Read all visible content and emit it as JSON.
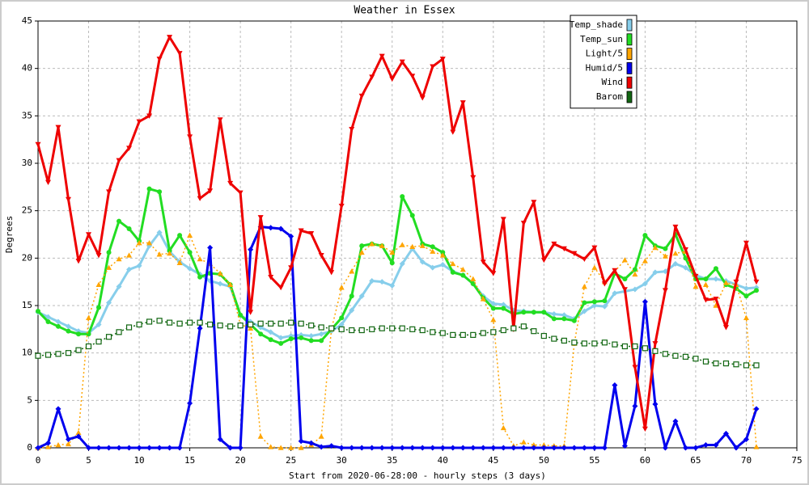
{
  "chart_data": {
    "type": "line",
    "title": "Weather in Essex",
    "x_label": "Start from 2020-06-28:00 - hourly steps (3 days)",
    "y_label": "Degrees",
    "xlim": [
      0,
      75
    ],
    "ylim": [
      0,
      45
    ],
    "xticks": [
      0,
      5,
      10,
      15,
      20,
      25,
      30,
      35,
      40,
      45,
      50,
      55,
      60,
      65,
      70,
      75
    ],
    "yticks": [
      0,
      5,
      10,
      15,
      20,
      25,
      30,
      35,
      40,
      45
    ],
    "grid": true,
    "legend": "top-right",
    "x": [
      0,
      1,
      2,
      3,
      4,
      5,
      6,
      7,
      8,
      9,
      10,
      11,
      12,
      13,
      14,
      15,
      16,
      17,
      18,
      19,
      20,
      21,
      22,
      23,
      24,
      25,
      26,
      27,
      28,
      29,
      30,
      31,
      32,
      33,
      34,
      35,
      36,
      37,
      38,
      39,
      40,
      41,
      42,
      43,
      44,
      45,
      46,
      47,
      48,
      49,
      50,
      51,
      52,
      53,
      54,
      55,
      56,
      57,
      58,
      59,
      60,
      61,
      62,
      63,
      64,
      65,
      66,
      67,
      68,
      69,
      70,
      71
    ],
    "series": [
      {
        "name": "Temp_shade",
        "color": "#87ceeb",
        "marker": "diamond",
        "line_style": "solid",
        "values": [
          14.3,
          13.8,
          13.3,
          12.8,
          12.3,
          12.1,
          13,
          15.3,
          17,
          18.8,
          19.2,
          21.3,
          22.7,
          20.7,
          19.6,
          18.9,
          18.3,
          17.6,
          17.3,
          17,
          14,
          13.3,
          12.7,
          12.2,
          11.6,
          11.8,
          11.9,
          11.8,
          12,
          12.3,
          13,
          14.5,
          16,
          17.6,
          17.5,
          17.1,
          19.4,
          21,
          19.6,
          19,
          19.3,
          18.6,
          18.2,
          17.3,
          16,
          15.2,
          15.1,
          14.5,
          14.4,
          14.3,
          14.3,
          14.1,
          14,
          13.6,
          14.4,
          15,
          14.9,
          16.3,
          16.5,
          16.7,
          17.3,
          18.5,
          18.6,
          19.4,
          19,
          18.2,
          17.8,
          17.8,
          17.6,
          17.2,
          16.8,
          16.9
        ]
      },
      {
        "name": "Temp_sun",
        "color": "#22dd22",
        "marker": "circle",
        "line_style": "solid",
        "values": [
          14.4,
          13.3,
          12.8,
          12.3,
          12,
          12,
          14.8,
          20.6,
          23.9,
          23.1,
          21.8,
          27.3,
          27,
          20.8,
          22.4,
          20.6,
          18,
          18.4,
          18.3,
          17.2,
          14,
          13,
          12,
          11.4,
          11,
          11.5,
          11.6,
          11.3,
          11.3,
          12.5,
          13.7,
          16,
          21.3,
          21.5,
          21.3,
          19.5,
          26.5,
          24.5,
          21.5,
          21.2,
          20.6,
          18.5,
          18.2,
          17.3,
          15.8,
          14.7,
          14.7,
          14.1,
          14.3,
          14.3,
          14.3,
          13.6,
          13.6,
          13.4,
          15.3,
          15.4,
          15.5,
          18.4,
          17.8,
          18.8,
          22.4,
          21.3,
          21,
          22.5,
          20,
          17.8,
          17.8,
          18.9,
          17.2,
          16.8,
          16,
          16.6
        ]
      },
      {
        "name": "Light/5",
        "color": "#ffa500",
        "marker": "triangle-up",
        "line_style": "dotted",
        "values": [
          0,
          0.1,
          0.3,
          0.4,
          1.6,
          13.7,
          17.2,
          19,
          19.9,
          20.3,
          21.6,
          21.6,
          20.4,
          20.5,
          19.5,
          22.4,
          19.9,
          19.4,
          18.4,
          17.2,
          13,
          12.6,
          1.2,
          0.1,
          0,
          0,
          0,
          0.3,
          1.2,
          12.5,
          16.9,
          18.6,
          20.6,
          21.5,
          21.3,
          20.6,
          21.4,
          21.2,
          21.3,
          20.7,
          20.3,
          19.4,
          18.8,
          17.8,
          15.7,
          13.5,
          2.1,
          0.2,
          0.6,
          0.3,
          0.3,
          0.2,
          0.2,
          11,
          17,
          19,
          17.5,
          18.6,
          19.8,
          18.3,
          19.7,
          21.1,
          20.2,
          20.5,
          20.7,
          17,
          17.2,
          15,
          17.4,
          17.2,
          13.7,
          0.1
        ]
      },
      {
        "name": "Humid/5",
        "color": "#0000ee",
        "marker": "diamond",
        "line_style": "solid",
        "values": [
          0,
          0.5,
          4.1,
          0.9,
          1.2,
          0,
          0,
          0,
          0,
          0,
          0,
          0,
          0,
          0,
          0,
          4.7,
          12.6,
          21.1,
          0.9,
          0,
          0,
          20.9,
          23.3,
          23.2,
          23.1,
          22.3,
          0.7,
          0.5,
          0.1,
          0.2,
          0,
          0,
          0,
          0,
          0,
          0,
          0,
          0,
          0,
          0,
          0,
          0,
          0,
          0,
          0,
          0,
          0,
          0,
          0,
          0,
          0,
          0,
          0,
          0,
          0,
          0,
          0,
          6.6,
          0.2,
          4.4,
          15.4,
          4.6,
          0,
          2.8,
          0,
          0,
          0.3,
          0.3,
          1.5,
          0,
          0.9,
          4.1
        ]
      },
      {
        "name": "Wind",
        "color": "#ee0000",
        "marker": "triangle-down",
        "line_style": "solid",
        "values": [
          32,
          28,
          33.8,
          26.2,
          19.7,
          22.5,
          20.3,
          27,
          30.3,
          31.6,
          34.4,
          35,
          41,
          43.3,
          41.6,
          32.8,
          26.3,
          27.1,
          34.6,
          27.9,
          26.9,
          14.3,
          24.3,
          18,
          16.9,
          19,
          22.9,
          22.6,
          20.3,
          18.5,
          25.5,
          33.6,
          37.1,
          39.1,
          41.3,
          38.9,
          40.7,
          39.2,
          36.9,
          40.2,
          41,
          33.3,
          36.4,
          28.5,
          19.6,
          18.4,
          24.1,
          12.5,
          23.7,
          25.9,
          19.8,
          21.5,
          21,
          20.5,
          19.9,
          21.1,
          17.3,
          18.7,
          16.7,
          8.5,
          2,
          11,
          16.6,
          23.3,
          20.9,
          18.1,
          15.6,
          15.7,
          12.7,
          17.5,
          21.6,
          17.5
        ]
      },
      {
        "name": "Barom",
        "color": "#116611",
        "marker": "square",
        "line_style": "dotted",
        "values": [
          9.7,
          9.8,
          9.9,
          10,
          10.3,
          10.7,
          11.2,
          11.7,
          12.2,
          12.7,
          13,
          13.3,
          13.4,
          13.2,
          13.1,
          13.2,
          13.2,
          13,
          12.9,
          12.8,
          12.9,
          13,
          13.1,
          13.1,
          13.1,
          13.2,
          13.1,
          12.9,
          12.7,
          12.6,
          12.5,
          12.4,
          12.4,
          12.5,
          12.6,
          12.6,
          12.6,
          12.5,
          12.4,
          12.2,
          12.1,
          11.9,
          11.9,
          11.9,
          12.1,
          12.2,
          12.4,
          12.6,
          12.8,
          12.3,
          11.8,
          11.5,
          11.3,
          11.1,
          11,
          11,
          11.1,
          10.9,
          10.7,
          10.7,
          10.5,
          10.2,
          9.9,
          9.7,
          9.6,
          9.4,
          9.1,
          8.9,
          8.9,
          8.8,
          8.7,
          8.7
        ]
      }
    ]
  }
}
